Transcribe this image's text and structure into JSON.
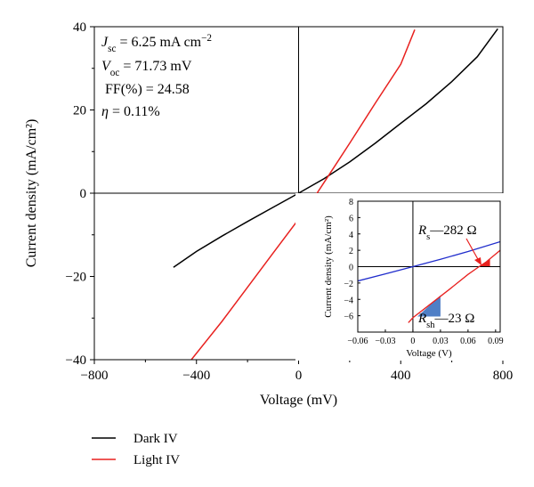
{
  "chart_data": [
    {
      "type": "line",
      "xlabel": "Voltage (mV)",
      "ylabel": "Current density (mA/cm²)",
      "xlim": [
        -800,
        800
      ],
      "ylim": [
        -40,
        40
      ],
      "xticks": [
        -800,
        -400,
        0,
        400,
        800
      ],
      "xtick_labels": [
        "−800",
        "−400",
        "0",
        "400",
        "800"
      ],
      "yticks": [
        -40,
        -20,
        0,
        20,
        40
      ],
      "ytick_labels": [
        "−40",
        "−20",
        "0",
        "20",
        "40"
      ],
      "grid": false,
      "legend_position": "below",
      "series": [
        {
          "name": "Dark IV",
          "color": "#000000",
          "x": [
            -490,
            -400,
            -300,
            -200,
            -100,
            0,
            100,
            200,
            300,
            400,
            500,
            600,
            700,
            780
          ],
          "y": [
            -17.8,
            -14.0,
            -10.3,
            -6.8,
            -3.4,
            0.0,
            3.5,
            7.5,
            12.0,
            16.8,
            21.5,
            26.8,
            32.8,
            39.5
          ]
        },
        {
          "name": "Light IV",
          "color": "#e8211f",
          "x": [
            -420,
            -300,
            -200,
            -100,
            0,
            72,
            100,
            200,
            300,
            400,
            455
          ],
          "y": [
            -40.0,
            -30.8,
            -22.6,
            -14.4,
            -6.25,
            0.0,
            2.6,
            12.0,
            21.6,
            31.0,
            39.3
          ]
        }
      ],
      "annotations": [
        {
          "text": "J",
          "sub": "sc",
          "rest": " = 6.25 mA cm",
          "sup": "−2"
        },
        {
          "text": "V",
          "sub": "oc",
          "rest": " = 71.73 mV"
        },
        {
          "text": "FF(%) = 24.58"
        },
        {
          "text": "η",
          "rest": " = 0.11%"
        }
      ]
    },
    {
      "type": "line",
      "role": "inset",
      "xlabel": "Voltage (V)",
      "ylabel": "Current density (mA/cm²)",
      "xlim": [
        -0.06,
        0.095
      ],
      "ylim": [
        -8,
        8
      ],
      "xticks": [
        -0.06,
        -0.03,
        0,
        0.03,
        0.06,
        0.09
      ],
      "xtick_labels": [
        "−0.06",
        "−0.03",
        "0",
        "0.03",
        "0.06",
        "0.09"
      ],
      "yticks": [
        -6,
        -4,
        -2,
        0,
        2,
        4,
        6,
        8
      ],
      "ytick_labels": [
        "−6",
        "−4",
        "−2",
        "0",
        "2",
        "4",
        "6",
        "8"
      ],
      "series": [
        {
          "color": "#1f2ccc",
          "x": [
            -0.06,
            -0.03,
            0,
            0.03,
            0.06,
            0.095
          ],
          "y": [
            -1.75,
            -0.88,
            0.0,
            0.9,
            1.85,
            3.05
          ]
        },
        {
          "color": "#e8211f",
          "x": [
            -0.005,
            0,
            0.02,
            0.04,
            0.06,
            0.072,
            0.08,
            0.095
          ],
          "y": [
            -6.85,
            -6.25,
            -4.5,
            -2.75,
            -0.95,
            0.0,
            0.6,
            2.0
          ]
        }
      ],
      "annotations": [
        {
          "text": "R",
          "sub": "s",
          "rest": "—282 Ω"
        },
        {
          "text": "R",
          "sub": "sh",
          "rest": "—23 Ω"
        }
      ],
      "colors": {
        "shunt_triangle": "#4f7fc6",
        "series_triangle": "#e8211f"
      }
    }
  ]
}
